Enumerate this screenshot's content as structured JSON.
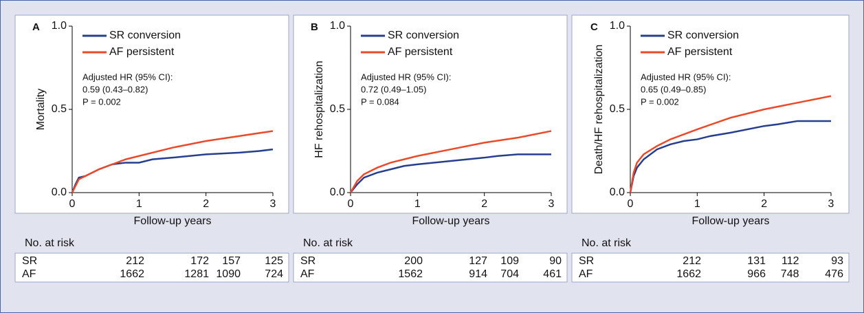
{
  "chart_data": [
    {
      "type": "line",
      "panel_label": "A",
      "ylabel": "Mortality",
      "xlabel": "Follow-up years",
      "xlim": [
        0,
        3
      ],
      "ylim": [
        0,
        1
      ],
      "xticks": [
        0,
        1,
        2,
        3
      ],
      "yticks": [
        {
          "value": 0,
          "label": "0.0"
        },
        {
          "value": 0.5,
          "label": "0.5"
        },
        {
          "value": 1,
          "label": "1.0"
        }
      ],
      "series": [
        {
          "name": "SR conversion",
          "color": "#253f8e",
          "x": [
            0,
            0.05,
            0.1,
            0.2,
            0.4,
            0.6,
            0.8,
            1,
            1.2,
            1.5,
            2,
            2.5,
            2.8,
            3
          ],
          "values": [
            0,
            0.05,
            0.09,
            0.1,
            0.14,
            0.17,
            0.18,
            0.18,
            0.2,
            0.21,
            0.23,
            0.24,
            0.25,
            0.26
          ]
        },
        {
          "name": "AF persistent",
          "color": "#e84a2a",
          "x": [
            0,
            0.1,
            0.2,
            0.4,
            0.6,
            0.8,
            1,
            1.5,
            2,
            2.5,
            3
          ],
          "values": [
            0,
            0.08,
            0.1,
            0.14,
            0.17,
            0.2,
            0.22,
            0.27,
            0.31,
            0.34,
            0.37
          ]
        }
      ],
      "annotation": [
        "Adjusted HR (95% CI):",
        "0.59 (0.43–0.82)",
        "P = 0.002"
      ],
      "risk_table": {
        "title": "No. at risk",
        "rows": [
          {
            "label": "SR",
            "values": [
              212,
              172,
              157,
              125
            ]
          },
          {
            "label": "AF",
            "values": [
              1662,
              1281,
              1090,
              724
            ]
          }
        ]
      }
    },
    {
      "type": "line",
      "panel_label": "B",
      "ylabel": "HF rehospitalization",
      "xlabel": "Follow-up years",
      "xlim": [
        0,
        3
      ],
      "ylim": [
        0,
        1
      ],
      "xticks": [
        0,
        1,
        2,
        3
      ],
      "yticks": [
        {
          "value": 0,
          "label": "0.0"
        },
        {
          "value": 0.5,
          "label": "0.5"
        },
        {
          "value": 1,
          "label": "1.0"
        }
      ],
      "series": [
        {
          "name": "SR conversion",
          "color": "#253f8e",
          "x": [
            0,
            0.1,
            0.2,
            0.4,
            0.6,
            0.8,
            1,
            1.5,
            2,
            2.2,
            2.5,
            3
          ],
          "values": [
            0,
            0.05,
            0.09,
            0.12,
            0.14,
            0.16,
            0.17,
            0.19,
            0.21,
            0.22,
            0.23,
            0.23
          ]
        },
        {
          "name": "AF persistent",
          "color": "#e84a2a",
          "x": [
            0,
            0.1,
            0.2,
            0.4,
            0.6,
            0.8,
            1,
            1.5,
            2,
            2.5,
            3
          ],
          "values": [
            0,
            0.07,
            0.11,
            0.15,
            0.18,
            0.2,
            0.22,
            0.26,
            0.3,
            0.33,
            0.37
          ]
        }
      ],
      "annotation": [
        "Adjusted HR (95% CI):",
        "0.72 (0.49–1.05)",
        "P = 0.084"
      ],
      "risk_table": {
        "title": "No. at risk",
        "rows": [
          {
            "label": "SR",
            "values": [
              200,
              127,
              109,
              90
            ]
          },
          {
            "label": "AF",
            "values": [
              1562,
              914,
              704,
              461
            ]
          }
        ]
      }
    },
    {
      "type": "line",
      "panel_label": "C",
      "ylabel": "Death/HF rehospitalization",
      "xlabel": "Follow-up years",
      "xlim": [
        0,
        3
      ],
      "ylim": [
        0,
        1
      ],
      "xticks": [
        0,
        1,
        2,
        3
      ],
      "yticks": [
        {
          "value": 0,
          "label": "0.0"
        },
        {
          "value": 0.5,
          "label": "0.5"
        },
        {
          "value": 1,
          "label": "1.0"
        }
      ],
      "series": [
        {
          "name": "SR conversion",
          "color": "#253f8e",
          "x": [
            0,
            0.05,
            0.1,
            0.2,
            0.4,
            0.6,
            0.8,
            1,
            1.2,
            1.5,
            2,
            2.2,
            2.5,
            3
          ],
          "values": [
            0,
            0.1,
            0.15,
            0.2,
            0.26,
            0.29,
            0.31,
            0.32,
            0.34,
            0.36,
            0.4,
            0.41,
            0.43,
            0.43
          ]
        },
        {
          "name": "AF persistent",
          "color": "#e84a2a",
          "x": [
            0,
            0.05,
            0.1,
            0.2,
            0.4,
            0.6,
            0.8,
            1,
            1.5,
            2,
            2.5,
            3
          ],
          "values": [
            0,
            0.12,
            0.18,
            0.23,
            0.28,
            0.32,
            0.35,
            0.38,
            0.45,
            0.5,
            0.54,
            0.58
          ]
        }
      ],
      "annotation": [
        "Adjusted HR (95% CI):",
        "0.65 (0.49–0.85)",
        "P = 0.002"
      ],
      "risk_table": {
        "title": "No. at risk",
        "rows": [
          {
            "label": "SR",
            "values": [
              212,
              131,
              112,
              93
            ]
          },
          {
            "label": "AF",
            "values": [
              1662,
              966,
              748,
              476
            ]
          }
        ]
      }
    }
  ]
}
